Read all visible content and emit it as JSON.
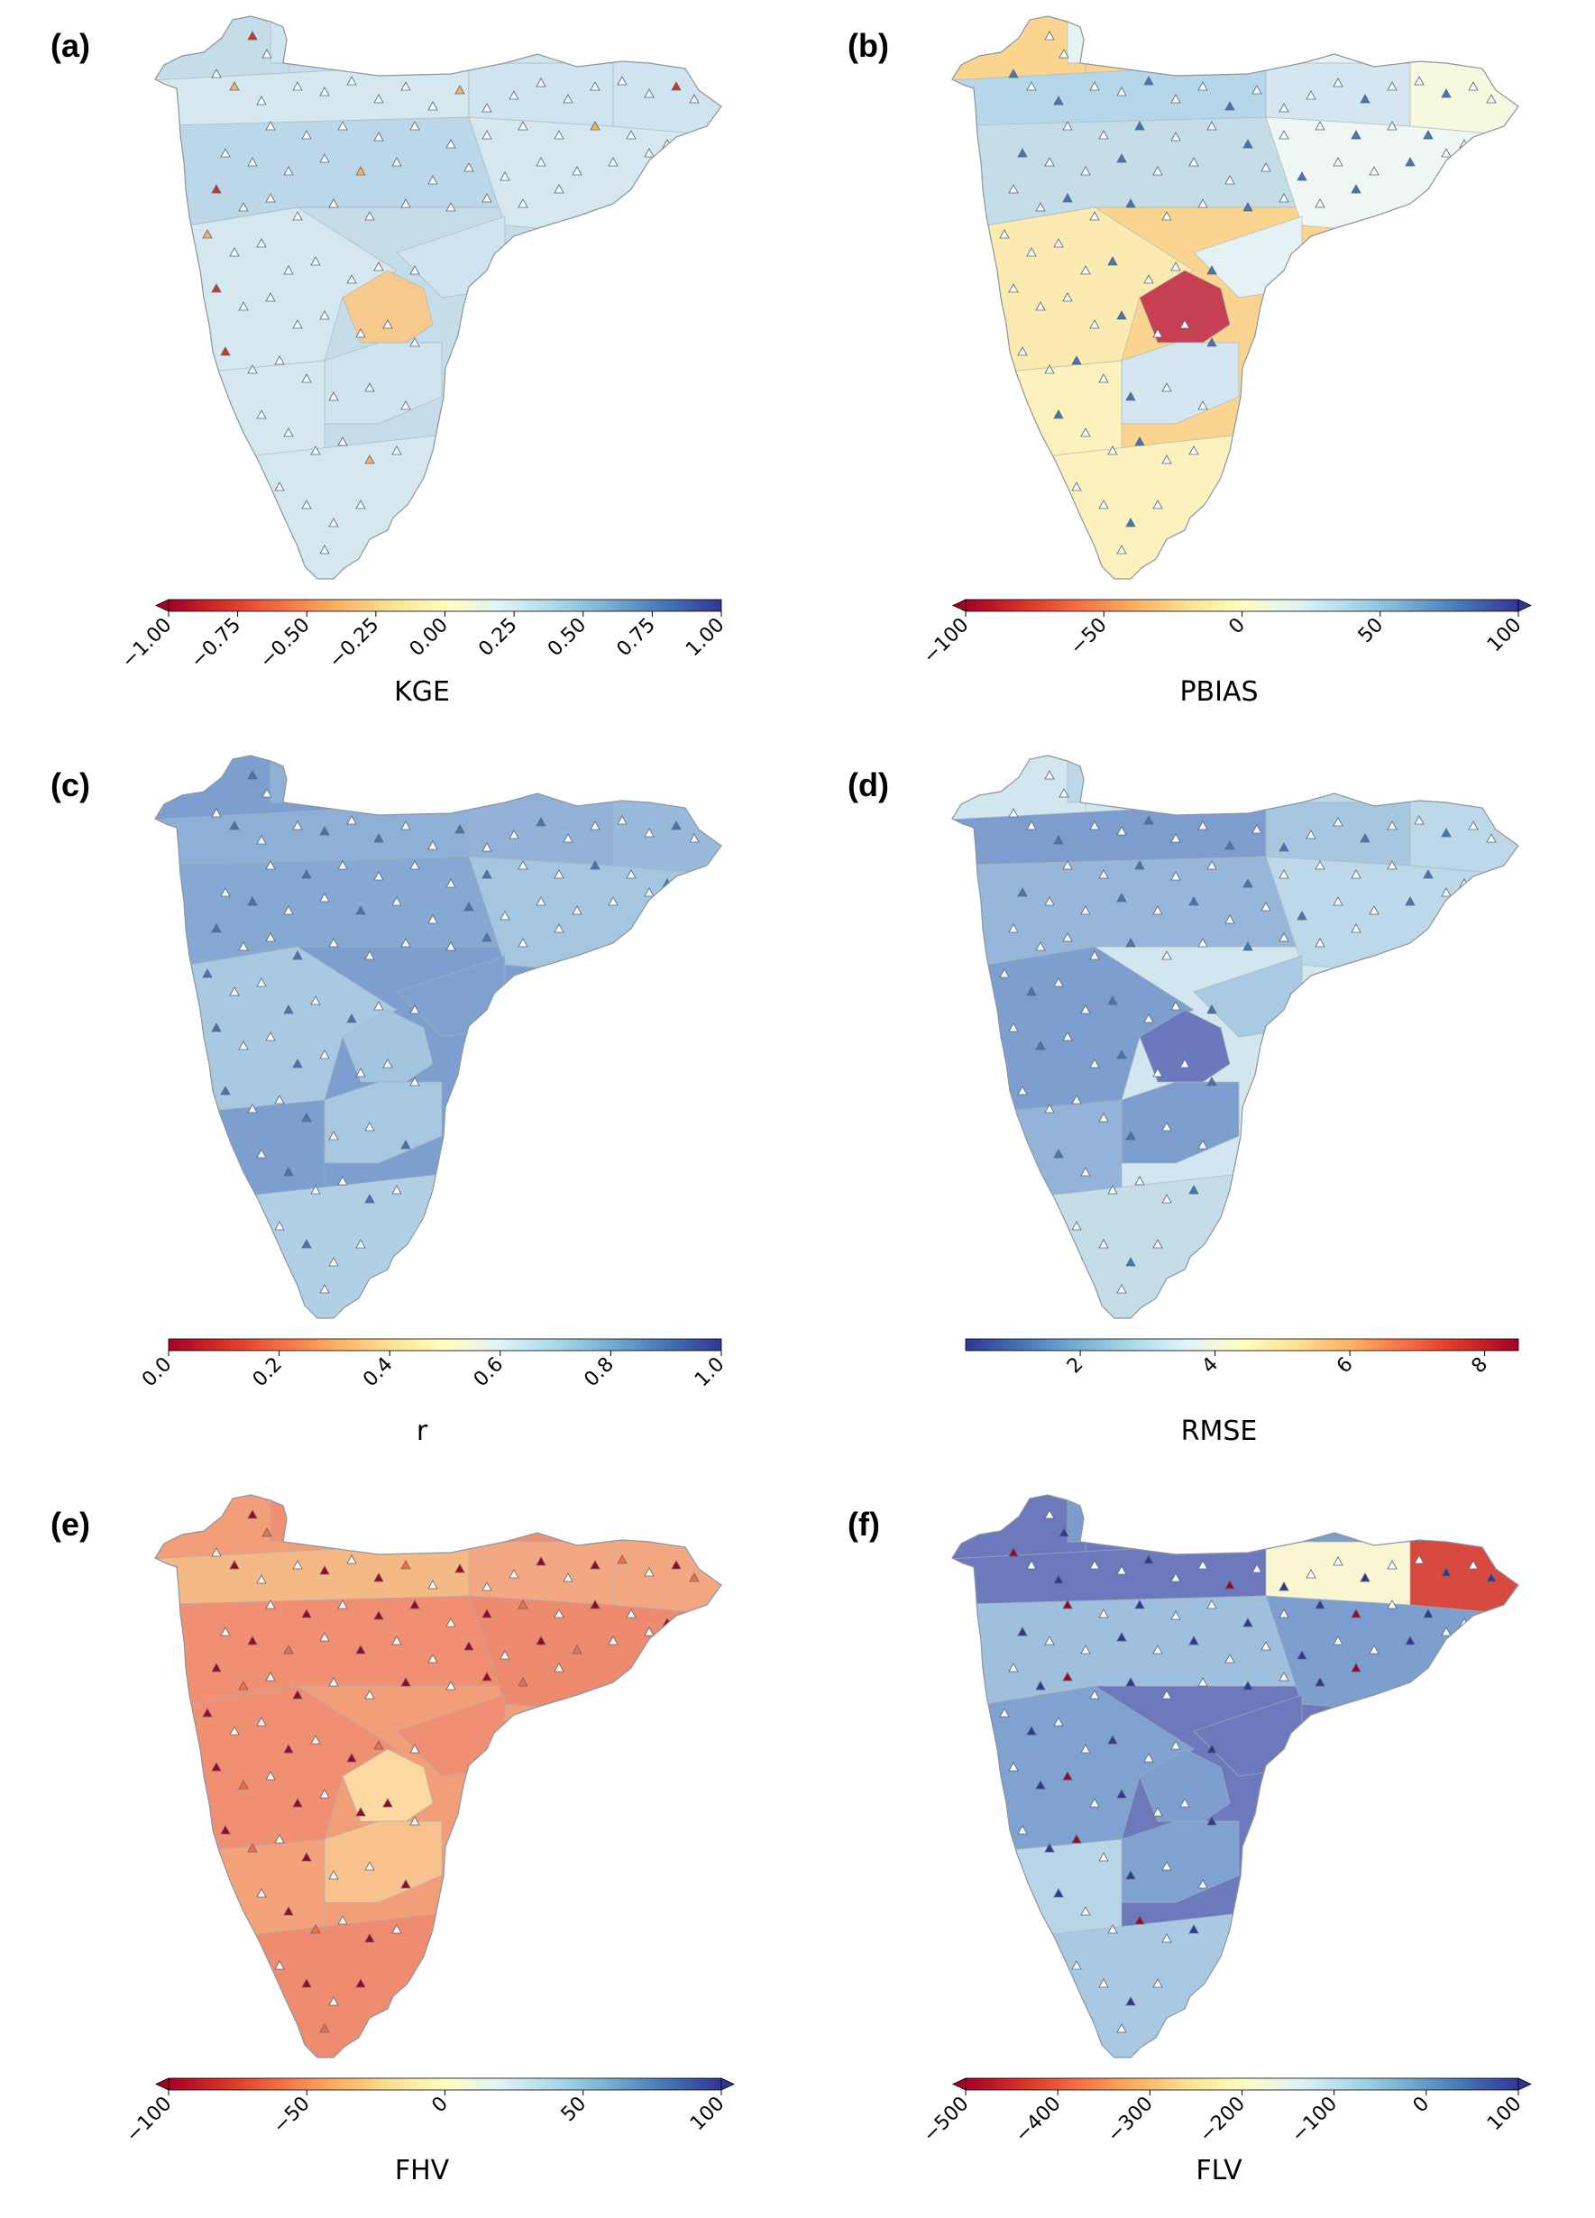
{
  "panels": [
    {
      "label": "(a)",
      "metric": "KGE",
      "cmap": "RdYlBu",
      "vmin": -1.0,
      "vmax": 1.0,
      "ticks": [
        "−1.00",
        "−0.75",
        "−0.50",
        "−0.25",
        "0.00",
        "0.25",
        "0.50",
        "0.75",
        "1.00"
      ],
      "tick_values": [
        -1.0,
        -0.75,
        -0.5,
        -0.25,
        0.0,
        0.25,
        0.5,
        0.75,
        1.0
      ],
      "extend_min": true,
      "extend_max": false,
      "fills": [
        "#c4dde9",
        "#d6e8ef",
        "#cfe4ee",
        "#cfe4ee",
        "#cfe4ee",
        "#bcd8e8",
        "#d5e7ef",
        "#d5e7ef",
        "#f8c98d",
        "#cfe4ee",
        "#cfe4ee",
        "#d6e8ef",
        "#d6e8ef"
      ]
    },
    {
      "label": "(b)",
      "metric": "PBIAS",
      "cmap": "RdYlBu",
      "vmin": -100,
      "vmax": 100,
      "ticks": [
        "−100",
        "−50",
        "0",
        "50",
        "100"
      ],
      "tick_values": [
        -100,
        -50,
        0,
        50,
        100
      ],
      "extend_min": true,
      "extend_max": true,
      "fills": [
        "#fbd58f",
        "#b6d6e9",
        "#d4e7f0",
        "#e6f3f3",
        "#f6f9dd",
        "#c4dde9",
        "#eef7f3",
        "#fbebb0",
        "#c63f53",
        "#e4f2f5",
        "#d4e7f0",
        "#fdf2bd",
        "#fdf2bd"
      ]
    },
    {
      "label": "(c)",
      "metric": "r",
      "cmap": "RdYlBu",
      "vmin": 0.0,
      "vmax": 1.0,
      "ticks": [
        "0.0",
        "0.2",
        "0.4",
        "0.6",
        "0.8",
        "1.0"
      ],
      "tick_values": [
        0.0,
        0.2,
        0.4,
        0.6,
        0.8,
        1.0
      ],
      "extend_min": false,
      "extend_max": false,
      "fills": [
        "#7d9fcf",
        "#8fb0d6",
        "#92b3d7",
        "#8fb0d6",
        "#99badb",
        "#86a9d3",
        "#a5c6e0",
        "#a9c9e2",
        "#a4c5df",
        "#7ea1d0",
        "#a8c8e2",
        "#7d9fcf",
        "#b2d0e5"
      ]
    },
    {
      "label": "(d)",
      "metric": "RMSE",
      "cmap": "RdYlBu_r",
      "vmin": 0.3,
      "vmax": 8.5,
      "ticks": [
        "2",
        "4",
        "6",
        "8"
      ],
      "tick_values": [
        2,
        4,
        6,
        8
      ],
      "extend_min": false,
      "extend_max": false,
      "fills": [
        "#d2e6f0",
        "#7c9dce",
        "#a7c7e1",
        "#bcd8e9",
        "#bcd8e9",
        "#97b7da",
        "#bcd8e9",
        "#7d9fcf",
        "#6b78bd",
        "#a9cae3",
        "#7d9fcf",
        "#93b3d8",
        "#c4dde9"
      ]
    },
    {
      "label": "(e)",
      "metric": "FHV",
      "cmap": "RdYlBu",
      "vmin": -100,
      "vmax": 100,
      "ticks": [
        "−100",
        "−50",
        "0",
        "50",
        "100"
      ],
      "tick_values": [
        -100,
        -50,
        0,
        50,
        100
      ],
      "extend_min": true,
      "extend_max": true,
      "fills": [
        "#f29e78",
        "#f5b985",
        "#f4a882",
        "#f08f72",
        "#f4a882",
        "#f08f72",
        "#ee8a6e",
        "#f08f72",
        "#fcd9a0",
        "#f08f72",
        "#f8c28e",
        "#f3a27a",
        "#ef8b6f"
      ]
    },
    {
      "label": "(f)",
      "metric": "FLV",
      "cmap": "RdYlBu",
      "vmin": -500,
      "vmax": 100,
      "ticks": [
        "−500",
        "−400",
        "−300",
        "−200",
        "−100",
        "0",
        "100"
      ],
      "tick_values": [
        -500,
        -400,
        -300,
        -200,
        -100,
        0,
        100
      ],
      "extend_min": true,
      "extend_max": true,
      "fills": [
        "#6d79bd",
        "#6d79bd",
        "#fbf6d2",
        "#7b9dce",
        "#d8493f",
        "#9fbfde",
        "#7d9fcf",
        "#7fa2d0",
        "#7d9fcf",
        "#6d79bd",
        "#7fa2d0",
        "#b8d6e8",
        "#a9c9e2"
      ]
    }
  ]
}
